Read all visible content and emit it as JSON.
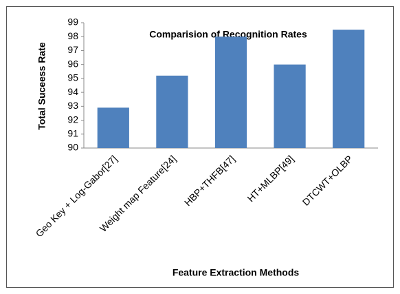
{
  "chart_data": {
    "type": "bar",
    "title": "Comparision of Recognition Rates",
    "x_label": "Feature Extraction Methods",
    "y_label": "Total Suceess Rate",
    "categories": [
      "Geo Key + Log-Gabor[27]",
      "Weight map Feature[24]",
      "HBP+THFB[47]",
      "HT+MLBP[49]",
      "DTCWT+OLBP"
    ],
    "values": [
      92.9,
      95.2,
      98.0,
      96.0,
      98.5
    ],
    "color": "#4f81bd",
    "ylim": [
      90,
      99
    ],
    "yticks": [
      90,
      91,
      92,
      93,
      94,
      95,
      96,
      97,
      98,
      99
    ],
    "grid": false
  }
}
